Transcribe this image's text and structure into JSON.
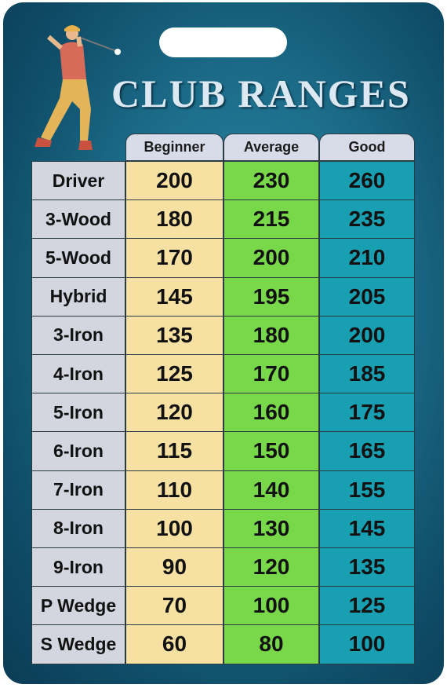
{
  "title": "CLUB RANGES",
  "table": {
    "header": [
      "Beginner",
      "Average",
      "Good"
    ],
    "rows": [
      [
        "Driver",
        200,
        230,
        260
      ],
      [
        "3-Wood",
        180,
        215,
        235
      ],
      [
        "5-Wood",
        170,
        200,
        210
      ],
      [
        "Hybrid",
        145,
        195,
        205
      ],
      [
        "3-Iron",
        135,
        180,
        200
      ],
      [
        "4-Iron",
        125,
        170,
        185
      ],
      [
        "5-Iron",
        120,
        160,
        175
      ],
      [
        "6-Iron",
        115,
        150,
        165
      ],
      [
        "7-Iron",
        110,
        140,
        155
      ],
      [
        "8-Iron",
        100,
        130,
        145
      ],
      [
        "9-Iron",
        90,
        120,
        135
      ],
      [
        "P Wedge",
        70,
        100,
        125
      ],
      [
        "S Wedge",
        60,
        80,
        100
      ]
    ]
  }
}
